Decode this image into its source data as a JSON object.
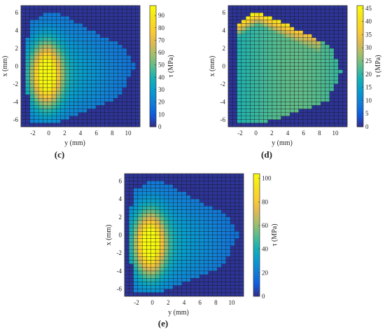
{
  "chart_data": [
    {
      "type": "heatmap",
      "panel_label": "(c)",
      "xlabel": "y (mm)",
      "ylabel": "x (mm)",
      "colorbar_label": "τ (MPa)",
      "xlim": [
        -3.5,
        11.5
      ],
      "ylim": [
        -6.8,
        6.8
      ],
      "xticks": [
        -2,
        0,
        2,
        4,
        6,
        8,
        10
      ],
      "yticks": [
        -6,
        -4,
        -2,
        0,
        2,
        4,
        6
      ],
      "clim": [
        0,
        98
      ],
      "colorbar_ticks": [
        0,
        10,
        20,
        30,
        40,
        50,
        60,
        70,
        80,
        90
      ],
      "colormap": "parula",
      "grid_cells": [
        27,
        34
      ],
      "peak_value": 98,
      "peak_location": [
        -0.3,
        -1.0
      ],
      "field": "peak"
    },
    {
      "type": "heatmap",
      "panel_label": "(d)",
      "xlabel": "y (mm)",
      "ylabel": "x (mm)",
      "colorbar_label": "τ (MPa)",
      "xlim": [
        -3.5,
        11.5
      ],
      "ylim": [
        -6.8,
        6.8
      ],
      "xticks": [
        -2,
        0,
        2,
        4,
        6,
        8,
        10
      ],
      "yticks": [
        -6,
        -4,
        -2,
        0,
        2,
        4,
        6
      ],
      "clim": [
        0,
        46
      ],
      "colorbar_ticks": [
        0,
        5,
        10,
        15,
        20,
        25,
        30,
        35,
        40,
        45
      ],
      "colormap": "parula",
      "grid_cells": [
        27,
        34
      ],
      "peak_value": 45,
      "peak_location": [
        0.0,
        4.5
      ],
      "field": "crescent"
    },
    {
      "type": "heatmap",
      "panel_label": "(e)",
      "xlabel": "y (mm)",
      "ylabel": "x (mm)",
      "colorbar_label": "τ (MPa)",
      "xlim": [
        -3.5,
        11.5
      ],
      "ylim": [
        -6.8,
        6.8
      ],
      "xticks": [
        -2,
        0,
        2,
        4,
        6,
        8,
        10
      ],
      "yticks": [
        -6,
        -4,
        -2,
        0,
        2,
        4,
        6
      ],
      "clim": [
        0,
        104
      ],
      "colorbar_ticks": [
        0,
        20,
        40,
        60,
        80,
        100
      ],
      "colormap": "parula",
      "grid_cells": [
        27,
        34
      ],
      "peak_value": 103,
      "peak_location": [
        -0.3,
        -1.3
      ],
      "field": "peak"
    }
  ]
}
